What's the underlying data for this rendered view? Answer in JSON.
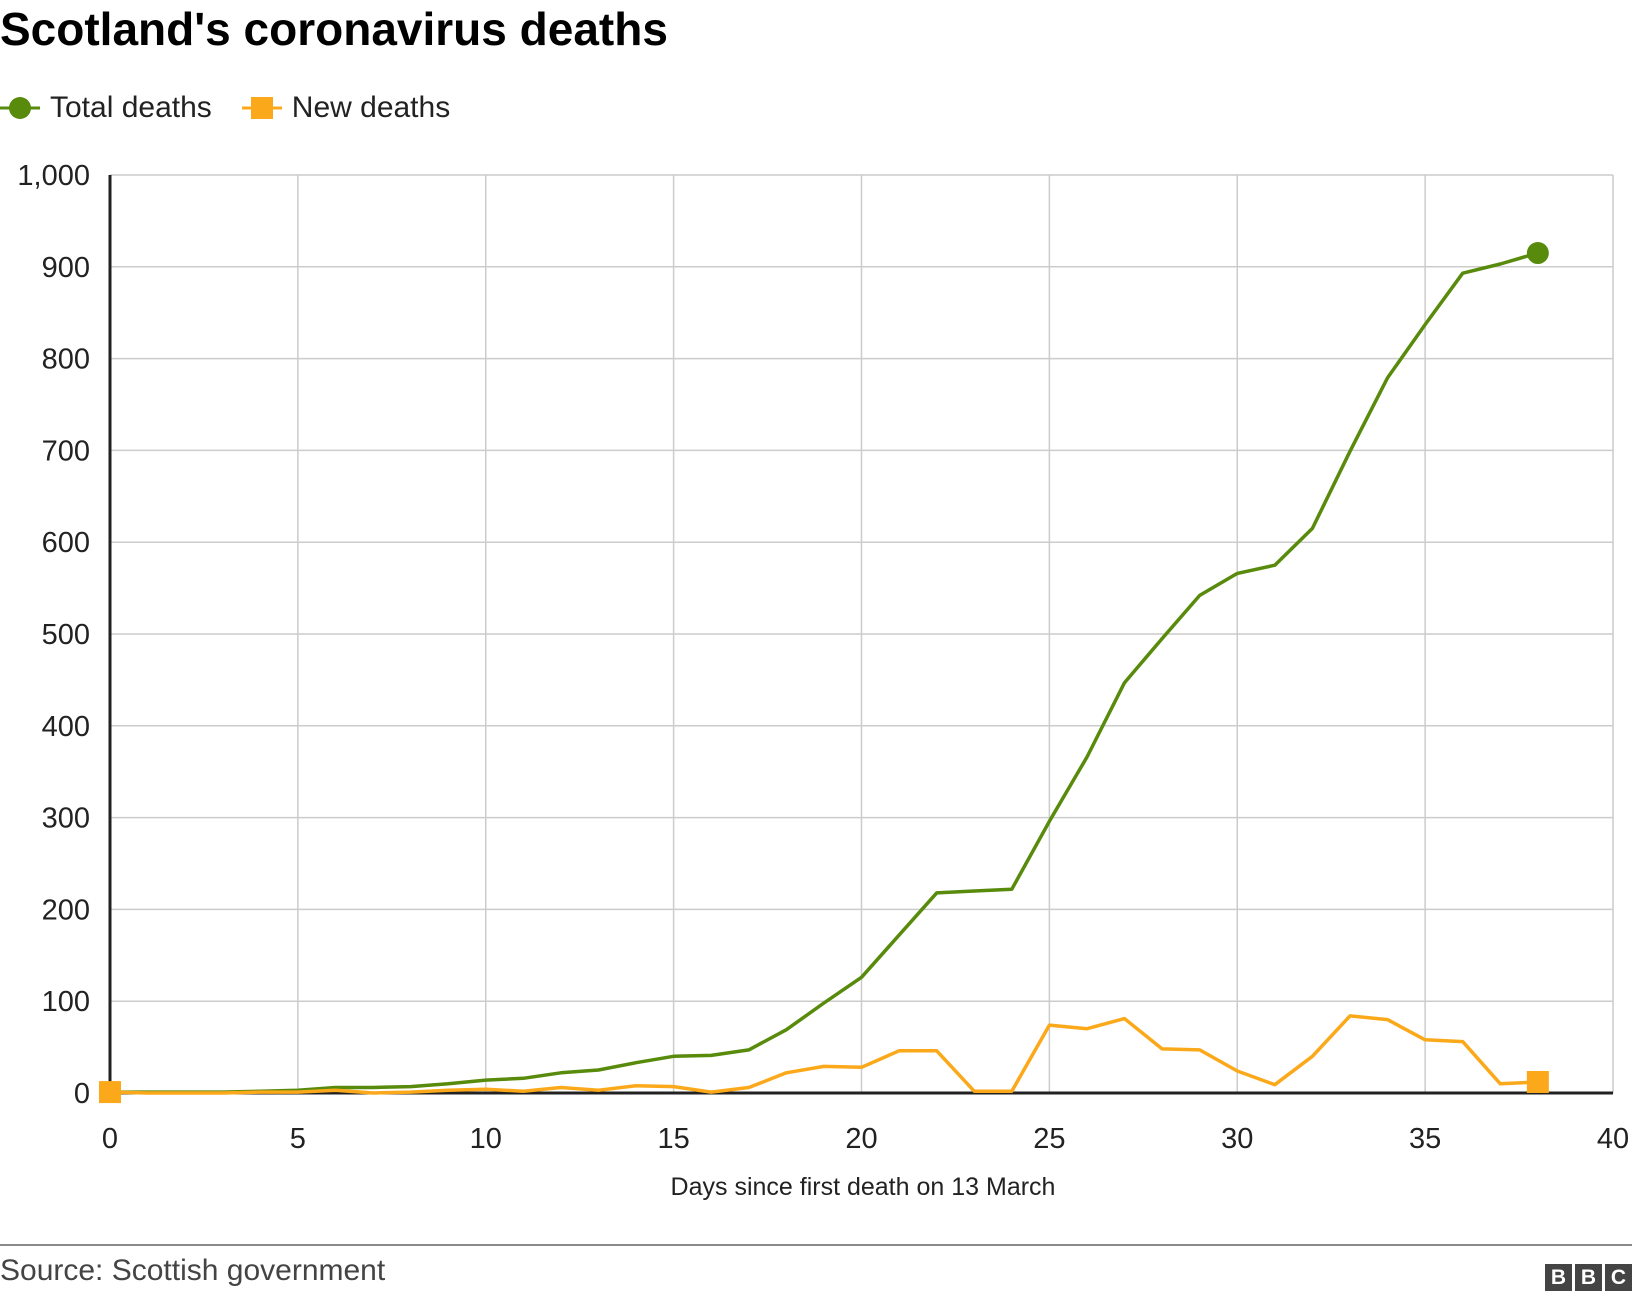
{
  "title": "Scotland's coronavirus deaths",
  "legend": [
    {
      "label": "Total deaths",
      "color": "#588a0b",
      "marker": "circle"
    },
    {
      "label": "New deaths",
      "color": "#fba91a",
      "marker": "square"
    }
  ],
  "chart_data": {
    "type": "line",
    "title": "Scotland's coronavirus deaths",
    "xlabel": "Days since first death on 13 March",
    "ylabel": "",
    "xlim": [
      0,
      40
    ],
    "ylim": [
      0,
      1000
    ],
    "x_ticks": [
      0,
      5,
      10,
      15,
      20,
      25,
      30,
      35,
      40
    ],
    "y_ticks": [
      0,
      100,
      200,
      300,
      400,
      500,
      600,
      700,
      800,
      900,
      1000
    ],
    "y_tick_labels": [
      "0",
      "100",
      "200",
      "300",
      "400",
      "500",
      "600",
      "700",
      "800",
      "900",
      "1,000"
    ],
    "grid": true,
    "legend_position": "top-left",
    "x": [
      0,
      1,
      2,
      3,
      4,
      5,
      6,
      7,
      8,
      9,
      10,
      11,
      12,
      13,
      14,
      15,
      16,
      17,
      18,
      19,
      20,
      21,
      22,
      23,
      24,
      25,
      26,
      27,
      28,
      29,
      30,
      31,
      32,
      33,
      34,
      35,
      36,
      37,
      38
    ],
    "series": [
      {
        "name": "Total deaths",
        "color": "#588a0b",
        "marker": "circle",
        "values": [
          1,
          1,
          1,
          1,
          2,
          3,
          6,
          6,
          7,
          10,
          14,
          16,
          22,
          25,
          33,
          40,
          41,
          47,
          69,
          98,
          126,
          172,
          218,
          220,
          222,
          296,
          366,
          447,
          495,
          542,
          566,
          575,
          615,
          699,
          779,
          837,
          893,
          903,
          915
        ]
      },
      {
        "name": "New deaths",
        "color": "#fba91a",
        "marker": "square",
        "values": [
          1,
          0,
          0,
          0,
          1,
          1,
          3,
          0,
          1,
          3,
          4,
          2,
          6,
          3,
          8,
          7,
          1,
          6,
          22,
          29,
          28,
          46,
          46,
          2,
          2,
          74,
          70,
          81,
          48,
          47,
          24,
          9,
          40,
          84,
          80,
          58,
          56,
          10,
          12
        ]
      }
    ]
  },
  "source": "Source: Scottish government",
  "logo": [
    "B",
    "B",
    "C"
  ]
}
